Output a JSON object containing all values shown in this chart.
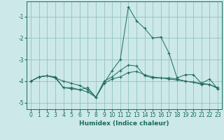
{
  "xlabel": "Humidex (Indice chaleur)",
  "background_color": "#cce8e8",
  "grid_color": "#88bbbb",
  "line_color": "#1a6b5a",
  "x_values": [
    0,
    1,
    2,
    3,
    4,
    5,
    6,
    7,
    8,
    9,
    10,
    11,
    12,
    13,
    14,
    15,
    16,
    17,
    18,
    19,
    20,
    21,
    22,
    23
  ],
  "series1": [
    -4.0,
    -3.8,
    -3.75,
    -3.8,
    -4.3,
    -4.3,
    -4.4,
    -4.3,
    -4.75,
    -4.1,
    -3.5,
    -3.0,
    -0.55,
    -1.2,
    -1.55,
    -2.0,
    -1.95,
    -2.7,
    -3.85,
    -3.7,
    -3.7,
    -4.1,
    -3.9,
    -4.35
  ],
  "series2": [
    -4.0,
    -3.8,
    -3.75,
    -3.85,
    -4.3,
    -4.35,
    -4.4,
    -4.5,
    -4.75,
    -4.0,
    -3.8,
    -3.5,
    -3.25,
    -3.3,
    -3.75,
    -3.85,
    -3.85,
    -3.85,
    -3.9,
    -4.0,
    -4.05,
    -4.15,
    -4.15,
    -4.35
  ],
  "series3": [
    -4.0,
    -3.8,
    -3.75,
    -3.85,
    -4.0,
    -4.1,
    -4.2,
    -4.4,
    -4.75,
    -4.1,
    -3.9,
    -3.8,
    -3.6,
    -3.55,
    -3.7,
    -3.8,
    -3.85,
    -3.9,
    -3.95,
    -4.0,
    -4.05,
    -4.1,
    -4.15,
    -4.3
  ],
  "ylim": [
    -5.3,
    -0.3
  ],
  "xlim": [
    -0.5,
    23.5
  ],
  "yticks": [
    -5,
    -4,
    -3,
    -2,
    -1
  ],
  "xticks": [
    0,
    1,
    2,
    3,
    4,
    5,
    6,
    7,
    8,
    9,
    10,
    11,
    12,
    13,
    14,
    15,
    16,
    17,
    18,
    19,
    20,
    21,
    22,
    23
  ],
  "xlabel_fontsize": 6.5,
  "tick_fontsize": 5.5,
  "lw": 0.7,
  "ms": 2.5
}
